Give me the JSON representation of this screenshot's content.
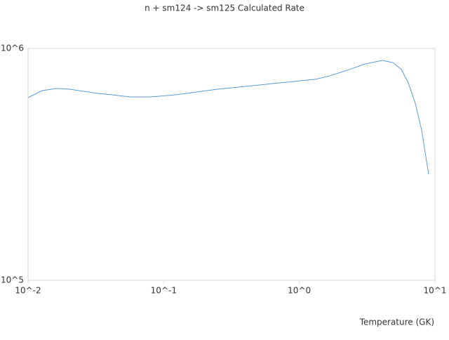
{
  "chart_data": {
    "type": "line",
    "title": "n + sm124 -> sm125 Calculated Rate",
    "x_label": "Temperature (GK)",
    "log_x": true,
    "log_y": true,
    "grid": true,
    "xlim": [
      0.01,
      10
    ],
    "ylim": [
      100000,
      1000000
    ],
    "xticks": [
      {
        "value": 0.01,
        "label": "10^-2"
      },
      {
        "value": 0.1,
        "label": "10^-1"
      },
      {
        "value": 1,
        "label": "10^0"
      },
      {
        "value": 10,
        "label": "10^1"
      }
    ],
    "yticks": [
      {
        "value": 100000,
        "label": "10^5"
      },
      {
        "value": 1000000,
        "label": "10^6"
      }
    ],
    "series": [
      {
        "color": "#5b9bd5",
        "x": [
          0.01,
          0.0127,
          0.0161,
          0.0204,
          0.0259,
          0.0329,
          0.0418,
          0.0562,
          0.0804,
          0.122,
          0.174,
          0.249,
          0.401,
          0.645,
          0.924,
          1.32,
          1.68,
          2.26,
          3.04,
          4.1,
          4.9,
          5.65,
          6.36,
          7.16,
          7.97,
          8.98
        ],
        "values": [
          614000,
          658000,
          672000,
          667000,
          653000,
          640000,
          631000,
          618000,
          618000,
          631000,
          649000,
          667000,
          686000,
          706000,
          721000,
          737000,
          762000,
          806000,
          857000,
          888000,
          869000,
          812000,
          711000,
          580000,
          445000,
          287000
        ]
      }
    ]
  }
}
